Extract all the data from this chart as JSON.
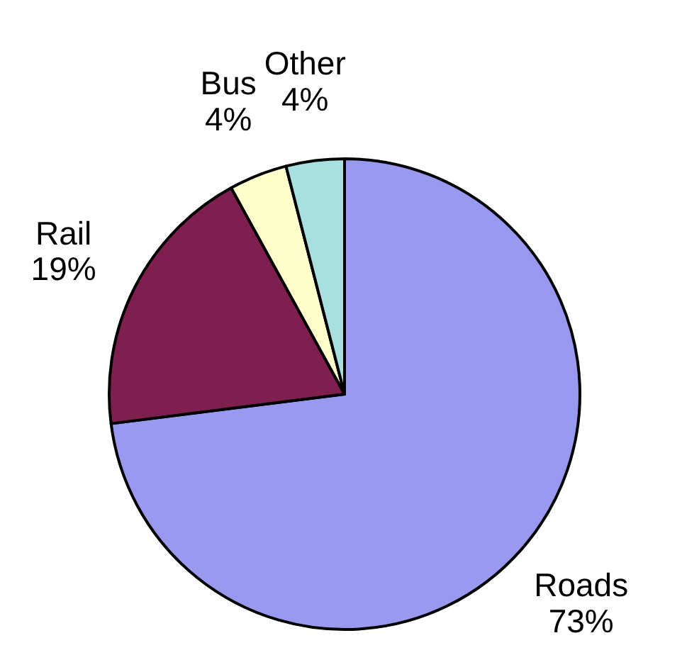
{
  "chart_data": {
    "type": "pie",
    "categories": [
      "Roads",
      "Rail",
      "Bus",
      "Other"
    ],
    "values": [
      73,
      19,
      4,
      4
    ],
    "colors": [
      "#9999f0",
      "#7f1f4f",
      "#ffffcc",
      "#a8e0e0"
    ],
    "value_labels": [
      "73%",
      "19%",
      "4%",
      "4%"
    ]
  }
}
